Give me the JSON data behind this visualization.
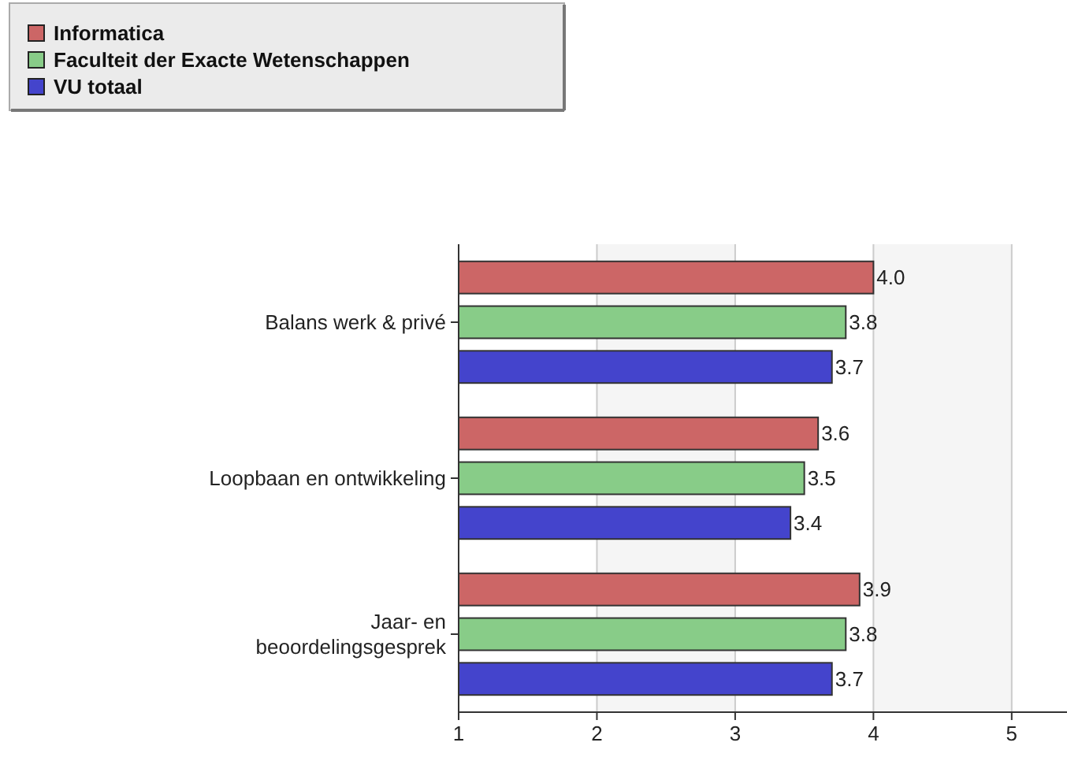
{
  "chart_data": {
    "type": "bar",
    "orientation": "horizontal",
    "categories": [
      "Balans werk & privé",
      "Loopbaan en ontwikkeling",
      "Jaar- en beoordelingsgesprek"
    ],
    "series": [
      {
        "name": "Informatica",
        "color": "#cc6666",
        "values": [
          4.0,
          3.6,
          3.9
        ],
        "value_labels": [
          "4.0",
          "3.6",
          "3.9"
        ]
      },
      {
        "name": "Faculteit der Exacte Wetenschappen",
        "color": "#88cc88",
        "values": [
          3.8,
          3.5,
          3.8
        ],
        "value_labels": [
          "3.8",
          "3.5",
          "3.8"
        ]
      },
      {
        "name": "VU totaal",
        "color": "#4444cc",
        "values": [
          3.7,
          3.4,
          3.7
        ],
        "value_labels": [
          "3.7",
          "3.4",
          "3.7"
        ]
      }
    ],
    "xlim": [
      1,
      5.4
    ],
    "xticks": [
      1,
      2,
      3,
      4,
      5
    ],
    "grid": "x",
    "legend": "top left"
  }
}
